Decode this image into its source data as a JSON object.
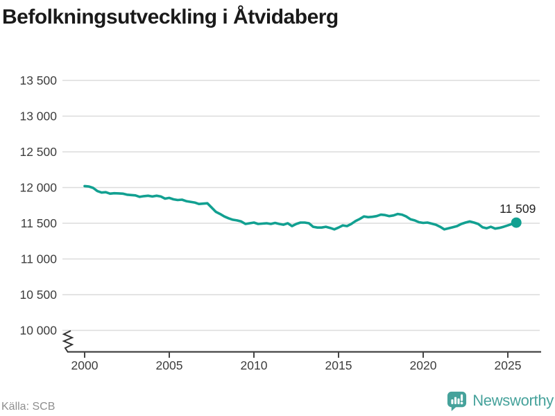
{
  "title": "Befolkningsutveckling i Åtvidaberg",
  "footer": {
    "source": "Källa: SCB",
    "brand": "Newsworthy"
  },
  "colors": {
    "line": "#12a091",
    "grid": "#dcdcdc",
    "axis": "#444444",
    "tick_text": "#3d3d3d",
    "title": "#1a1a1a",
    "source_text": "#8e8e8e",
    "brand": "#46a29b",
    "background": "#ffffff",
    "end_label_text": "#222222"
  },
  "chart_data": {
    "type": "line",
    "title": "Befolkningsutveckling i Åtvidaberg",
    "xlabel": "",
    "ylabel": "",
    "grid": "horizontal",
    "legend": "none",
    "axis_break": true,
    "xlim": [
      1999,
      2027
    ],
    "ylim": [
      10000,
      13500
    ],
    "xticks": [
      2000,
      2005,
      2010,
      2015,
      2020,
      2025
    ],
    "yticks": [
      10000,
      10500,
      11000,
      11500,
      12000,
      12500,
      13000,
      13500
    ],
    "ytick_labels": [
      "10 000",
      "10 500",
      "11 000",
      "11 500",
      "12 000",
      "12 500",
      "13 000",
      "13 500"
    ],
    "last_point": {
      "x": 2025.5,
      "value": 11509,
      "label": "11 509"
    },
    "series": [
      {
        "name": "Befolkning",
        "x": [
          2000,
          2000.25,
          2000.5,
          2000.75,
          2001,
          2001.25,
          2001.5,
          2001.75,
          2002,
          2002.25,
          2002.5,
          2002.75,
          2003,
          2003.25,
          2003.5,
          2003.75,
          2004,
          2004.25,
          2004.5,
          2004.75,
          2005,
          2005.25,
          2005.5,
          2005.75,
          2006,
          2006.25,
          2006.5,
          2006.75,
          2007,
          2007.25,
          2007.5,
          2007.75,
          2008,
          2008.25,
          2008.5,
          2008.75,
          2009,
          2009.25,
          2009.5,
          2009.75,
          2010,
          2010.25,
          2010.5,
          2010.75,
          2011,
          2011.25,
          2011.5,
          2011.75,
          2012,
          2012.25,
          2012.5,
          2012.75,
          2013,
          2013.25,
          2013.5,
          2013.75,
          2014,
          2014.25,
          2014.5,
          2014.75,
          2015,
          2015.25,
          2015.5,
          2015.75,
          2016,
          2016.25,
          2016.5,
          2016.75,
          2017,
          2017.25,
          2017.5,
          2017.75,
          2018,
          2018.25,
          2018.5,
          2018.75,
          2019,
          2019.25,
          2019.5,
          2019.75,
          2020,
          2020.25,
          2020.5,
          2020.75,
          2021,
          2021.25,
          2021.5,
          2021.75,
          2022,
          2022.25,
          2022.5,
          2022.75,
          2023,
          2023.25,
          2023.5,
          2023.75,
          2024,
          2024.25,
          2024.5,
          2024.75,
          2025,
          2025.25,
          2025.5
        ],
        "values": [
          12020,
          12015,
          11995,
          11950,
          11930,
          11935,
          11915,
          11920,
          11918,
          11915,
          11900,
          11895,
          11890,
          11870,
          11880,
          11885,
          11875,
          11885,
          11875,
          11845,
          11855,
          11835,
          11825,
          11830,
          11810,
          11800,
          11790,
          11770,
          11775,
          11780,
          11720,
          11660,
          11630,
          11595,
          11570,
          11550,
          11540,
          11525,
          11490,
          11500,
          11510,
          11490,
          11495,
          11500,
          11490,
          11505,
          11490,
          11480,
          11500,
          11460,
          11490,
          11510,
          11510,
          11500,
          11450,
          11440,
          11440,
          11450,
          11435,
          11415,
          11440,
          11470,
          11460,
          11490,
          11530,
          11560,
          11595,
          11585,
          11590,
          11600,
          11620,
          11615,
          11600,
          11610,
          11630,
          11620,
          11595,
          11555,
          11540,
          11515,
          11505,
          11510,
          11495,
          11480,
          11450,
          11415,
          11430,
          11445,
          11460,
          11490,
          11510,
          11525,
          11510,
          11490,
          11445,
          11430,
          11450,
          11425,
          11435,
          11450,
          11470,
          11490,
          11509
        ]
      }
    ]
  }
}
